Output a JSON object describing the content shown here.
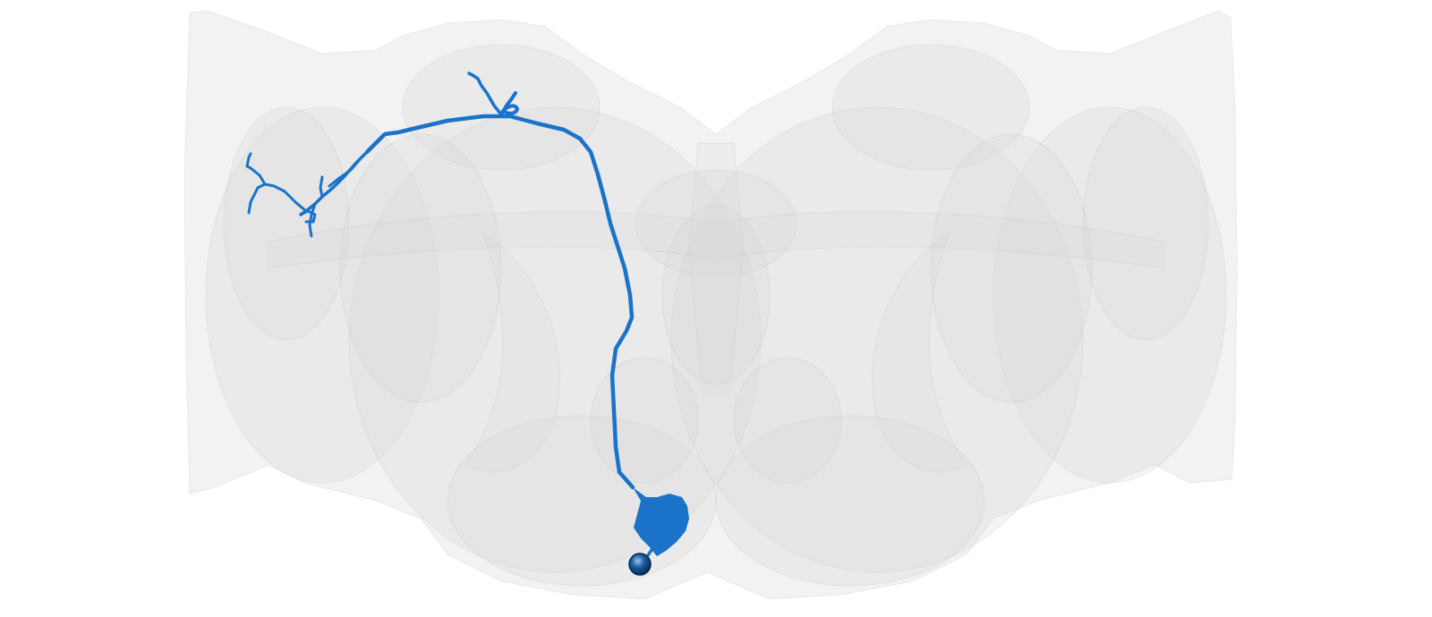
{
  "scene": {
    "background_color": "#ffffff",
    "mesh_color": "#d9d9d9",
    "mesh_edge_color": "#bdbdbd",
    "neuron_color": "#1a73c8",
    "soma_color": "#1c5fa3",
    "soma_highlight_color": "#9cc7f0"
  }
}
